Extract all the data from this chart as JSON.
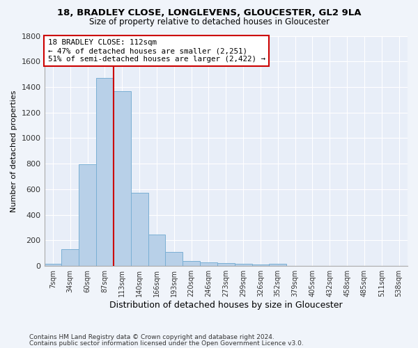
{
  "title1": "18, BRADLEY CLOSE, LONGLEVENS, GLOUCESTER, GL2 9LA",
  "title2": "Size of property relative to detached houses in Gloucester",
  "xlabel": "Distribution of detached houses by size in Gloucester",
  "ylabel": "Number of detached properties",
  "footnote1": "Contains HM Land Registry data © Crown copyright and database right 2024.",
  "footnote2": "Contains public sector information licensed under the Open Government Licence v3.0.",
  "bin_labels": [
    "7sqm",
    "34sqm",
    "60sqm",
    "87sqm",
    "113sqm",
    "140sqm",
    "166sqm",
    "193sqm",
    "220sqm",
    "246sqm",
    "273sqm",
    "299sqm",
    "326sqm",
    "352sqm",
    "379sqm",
    "405sqm",
    "432sqm",
    "458sqm",
    "485sqm",
    "511sqm",
    "538sqm"
  ],
  "bar_values": [
    15,
    130,
    795,
    1470,
    1370,
    575,
    245,
    110,
    40,
    30,
    25,
    15,
    10,
    20,
    0,
    0,
    0,
    0,
    0,
    0,
    0
  ],
  "bar_color": "#b8d0e8",
  "bar_edge_color": "#7aafd4",
  "bg_color": "#f0f4fa",
  "plot_bg_color": "#e8eef8",
  "grid_color": "#ffffff",
  "vline_color": "#cc0000",
  "annotation_title": "18 BRADLEY CLOSE: 112sqm",
  "annotation_line1": "← 47% of detached houses are smaller (2,251)",
  "annotation_line2": "51% of semi-detached houses are larger (2,422) →",
  "annotation_box_color": "#ffffff",
  "annotation_border_color": "#cc0000",
  "ylim": [
    0,
    1800
  ],
  "yticks": [
    0,
    200,
    400,
    600,
    800,
    1000,
    1200,
    1400,
    1600,
    1800
  ],
  "vline_bin_index": 4,
  "title1_fontsize": 9.5,
  "title2_fontsize": 8.5
}
